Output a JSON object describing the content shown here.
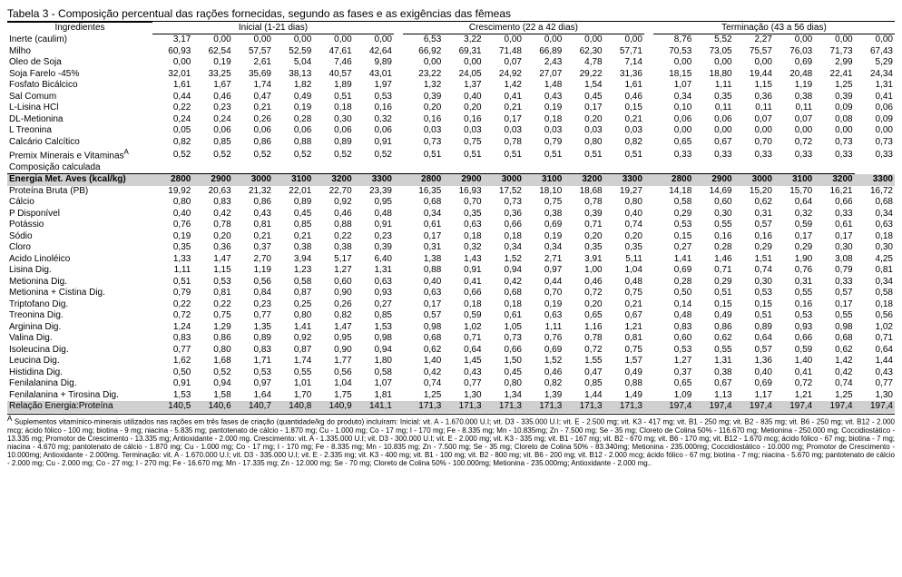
{
  "title": "Tabela 3 - Composição percentual das rações fornecidas, segundo as fases e as exigências das fêmeas",
  "header": {
    "ingredientes": "Ingredientes",
    "phases": [
      "Inicial (1-21 dias)",
      "Crescimento (22 a 42 dias)",
      "Terminação (43 a 56 dias)"
    ]
  },
  "ingredients": [
    {
      "label": "Inerte (caulim)",
      "v": [
        "3,17",
        "0,00",
        "0,00",
        "0,00",
        "0,00",
        "0,00",
        "6,53",
        "3,22",
        "0,00",
        "0,00",
        "0,00",
        "0,00",
        "8,76",
        "5,52",
        "2,27",
        "0,00",
        "0,00",
        "0,00"
      ]
    },
    {
      "label": "Milho",
      "v": [
        "60,93",
        "62,54",
        "57,57",
        "52,59",
        "47,61",
        "42,64",
        "66,92",
        "69,31",
        "71,48",
        "66,89",
        "62,30",
        "57,71",
        "70,53",
        "73,05",
        "75,57",
        "76,03",
        "71,73",
        "67,43"
      ]
    },
    {
      "label": "Óleo de Soja",
      "v": [
        "0,00",
        "0,19",
        "2,61",
        "5,04",
        "7,46",
        "9,89",
        "0,00",
        "0,00",
        "0,07",
        "2,43",
        "4,78",
        "7,14",
        "0,00",
        "0,00",
        "0,00",
        "0,69",
        "2,99",
        "5,29"
      ]
    },
    {
      "label": "Soja Farelo -45%",
      "v": [
        "32,01",
        "33,25",
        "35,69",
        "38,13",
        "40,57",
        "43,01",
        "23,22",
        "24,05",
        "24,92",
        "27,07",
        "29,22",
        "31,36",
        "18,15",
        "18,80",
        "19,44",
        "20,48",
        "22,41",
        "24,34"
      ]
    },
    {
      "label": "Fosfato Bicálcico",
      "v": [
        "1,61",
        "1,67",
        "1,74",
        "1,82",
        "1,89",
        "1,97",
        "1,32",
        "1,37",
        "1,42",
        "1,48",
        "1,54",
        "1,61",
        "1,07",
        "1,11",
        "1,15",
        "1,19",
        "1,25",
        "1,31"
      ]
    },
    {
      "label": "Sal Comum",
      "v": [
        "0,44",
        "0,46",
        "0,47",
        "0,49",
        "0,51",
        "0,53",
        "0,39",
        "0,40",
        "0,41",
        "0,43",
        "0,45",
        "0,46",
        "0,34",
        "0,35",
        "0,36",
        "0,38",
        "0,39",
        "0,41"
      ]
    },
    {
      "label": "L-Lisina HCl",
      "v": [
        "0,22",
        "0,23",
        "0,21",
        "0,19",
        "0,18",
        "0,16",
        "0,20",
        "0,20",
        "0,21",
        "0,19",
        "0,17",
        "0,15",
        "0,10",
        "0,11",
        "0,11",
        "0,11",
        "0,09",
        "0,06"
      ]
    },
    {
      "label": "DL-Metionina",
      "v": [
        "0,24",
        "0,24",
        "0,26",
        "0,28",
        "0,30",
        "0,32",
        "0,16",
        "0,16",
        "0,17",
        "0,18",
        "0,20",
        "0,21",
        "0,06",
        "0,06",
        "0,07",
        "0,07",
        "0,08",
        "0,09"
      ]
    },
    {
      "label": "L Treonina",
      "v": [
        "0,05",
        "0,06",
        "0,06",
        "0,06",
        "0,06",
        "0,06",
        "0,03",
        "0,03",
        "0,03",
        "0,03",
        "0,03",
        "0,03",
        "0,00",
        "0,00",
        "0,00",
        "0,00",
        "0,00",
        "0,00"
      ]
    },
    {
      "label": "Calcário Calcítico",
      "v": [
        "0,82",
        "0,85",
        "0,86",
        "0,88",
        "0,89",
        "0,91",
        "0,73",
        "0,75",
        "0,78",
        "0,79",
        "0,80",
        "0,82",
        "0,65",
        "0,67",
        "0,70",
        "0,72",
        "0,73",
        "0,73"
      ]
    },
    {
      "label": "Premix Minerais e Vitaminas",
      "sup": "A",
      "v": [
        "0,52",
        "0,52",
        "0,52",
        "0,52",
        "0,52",
        "0,52",
        "0,51",
        "0,51",
        "0,51",
        "0,51",
        "0,51",
        "0,51",
        "0,33",
        "0,33",
        "0,33",
        "0,33",
        "0,33",
        "0,33"
      ]
    }
  ],
  "composicao_label": "Composição calculada",
  "energy": {
    "label": "Energia Met. Aves (kcal/kg)",
    "v": [
      "2800",
      "2900",
      "3000",
      "3100",
      "3200",
      "3300",
      "2800",
      "2900",
      "3000",
      "3100",
      "3200",
      "3300",
      "2800",
      "2900",
      "3000",
      "3100",
      "3200",
      "3300"
    ]
  },
  "calculated": [
    {
      "label": "Proteína Bruta (PB)",
      "v": [
        "19,92",
        "20,63",
        "21,32",
        "22,01",
        "22,70",
        "23,39",
        "16,35",
        "16,93",
        "17,52",
        "18,10",
        "18,68",
        "19,27",
        "14,18",
        "14,69",
        "15,20",
        "15,70",
        "16,21",
        "16,72"
      ]
    },
    {
      "label": "Cálcio",
      "v": [
        "0,80",
        "0,83",
        "0,86",
        "0,89",
        "0,92",
        "0,95",
        "0,68",
        "0,70",
        "0,73",
        "0,75",
        "0,78",
        "0,80",
        "0,58",
        "0,60",
        "0,62",
        "0,64",
        "0,66",
        "0,68"
      ]
    },
    {
      "label": "P Disponível",
      "v": [
        "0,40",
        "0,42",
        "0,43",
        "0,45",
        "0,46",
        "0,48",
        "0,34",
        "0,35",
        "0,36",
        "0,38",
        "0,39",
        "0,40",
        "0,29",
        "0,30",
        "0,31",
        "0,32",
        "0,33",
        "0,34"
      ]
    },
    {
      "label": "Potássio",
      "v": [
        "0,76",
        "0,78",
        "0,81",
        "0,85",
        "0,88",
        "0,91",
        "0,61",
        "0,63",
        "0,66",
        "0,69",
        "0,71",
        "0,74",
        "0,53",
        "0,55",
        "0,57",
        "0,59",
        "0,61",
        "0,63"
      ]
    },
    {
      "label": "Sódio",
      "v": [
        "0,19",
        "0,20",
        "0,21",
        "0,21",
        "0,22",
        "0,23",
        "0,17",
        "0,18",
        "0,18",
        "0,19",
        "0,20",
        "0,20",
        "0,15",
        "0,16",
        "0,16",
        "0,17",
        "0,17",
        "0,18"
      ]
    },
    {
      "label": "Cloro",
      "v": [
        "0,35",
        "0,36",
        "0,37",
        "0,38",
        "0,38",
        "0,39",
        "0,31",
        "0,32",
        "0,34",
        "0,34",
        "0,35",
        "0,35",
        "0,27",
        "0,28",
        "0,29",
        "0,29",
        "0,30",
        "0,30"
      ]
    },
    {
      "label": "Ácido Linoléico",
      "v": [
        "1,33",
        "1,47",
        "2,70",
        "3,94",
        "5,17",
        "6,40",
        "1,38",
        "1,43",
        "1,52",
        "2,71",
        "3,91",
        "5,11",
        "1,41",
        "1,46",
        "1,51",
        "1,90",
        "3,08",
        "4,25"
      ]
    },
    {
      "label": "Lisina Dig.",
      "v": [
        "1,11",
        "1,15",
        "1,19",
        "1,23",
        "1,27",
        "1,31",
        "0,88",
        "0,91",
        "0,94",
        "0,97",
        "1,00",
        "1,04",
        "0,69",
        "0,71",
        "0,74",
        "0,76",
        "0,79",
        "0,81"
      ]
    },
    {
      "label": "Metionina Dig.",
      "v": [
        "0,51",
        "0,53",
        "0,56",
        "0,58",
        "0,60",
        "0,63",
        "0,40",
        "0,41",
        "0,42",
        "0,44",
        "0,46",
        "0,48",
        "0,28",
        "0,29",
        "0,30",
        "0,31",
        "0,33",
        "0,34"
      ]
    },
    {
      "label": "Metionina + Cistina Dig.",
      "v": [
        "0,79",
        "0,81",
        "0,84",
        "0,87",
        "0,90",
        "0,93",
        "0,63",
        "0,66",
        "0,68",
        "0,70",
        "0,72",
        "0,75",
        "0,50",
        "0,51",
        "0,53",
        "0,55",
        "0,57",
        "0,58"
      ]
    },
    {
      "label": "Triptofano Dig.",
      "v": [
        "0,22",
        "0,22",
        "0,23",
        "0,25",
        "0,26",
        "0,27",
        "0,17",
        "0,18",
        "0,18",
        "0,19",
        "0,20",
        "0,21",
        "0,14",
        "0,15",
        "0,15",
        "0,16",
        "0,17",
        "0,18"
      ]
    },
    {
      "label": "Treonina Dig.",
      "v": [
        "0,72",
        "0,75",
        "0,77",
        "0,80",
        "0,82",
        "0,85",
        "0,57",
        "0,59",
        "0,61",
        "0,63",
        "0,65",
        "0,67",
        "0,48",
        "0,49",
        "0,51",
        "0,53",
        "0,55",
        "0,56"
      ]
    },
    {
      "label": "Arginina Dig.",
      "v": [
        "1,24",
        "1,29",
        "1,35",
        "1,41",
        "1,47",
        "1,53",
        "0,98",
        "1,02",
        "1,05",
        "1,11",
        "1,16",
        "1,21",
        "0,83",
        "0,86",
        "0,89",
        "0,93",
        "0,98",
        "1,02"
      ]
    },
    {
      "label": "Valina Dig.",
      "v": [
        "0,83",
        "0,86",
        "0,89",
        "0,92",
        "0,95",
        "0,98",
        "0,68",
        "0,71",
        "0,73",
        "0,76",
        "0,78",
        "0,81",
        "0,60",
        "0,62",
        "0,64",
        "0,66",
        "0,68",
        "0,71"
      ]
    },
    {
      "label": "Isoleucina Dig.",
      "v": [
        "0,77",
        "0,80",
        "0,83",
        "0,87",
        "0,90",
        "0,94",
        "0,62",
        "0,64",
        "0,66",
        "0,69",
        "0,72",
        "0,75",
        "0,53",
        "0,55",
        "0,57",
        "0,59",
        "0,62",
        "0,64"
      ]
    },
    {
      "label": "Leucina Dig.",
      "v": [
        "1,62",
        "1,68",
        "1,71",
        "1,74",
        "1,77",
        "1,80",
        "1,40",
        "1,45",
        "1,50",
        "1,52",
        "1,55",
        "1,57",
        "1,27",
        "1,31",
        "1,36",
        "1,40",
        "1,42",
        "1,44"
      ]
    },
    {
      "label": "Histidina Dig.",
      "v": [
        "0,50",
        "0,52",
        "0,53",
        "0,55",
        "0,56",
        "0,58",
        "0,42",
        "0,43",
        "0,45",
        "0,46",
        "0,47",
        "0,49",
        "0,37",
        "0,38",
        "0,40",
        "0,41",
        "0,42",
        "0,43"
      ]
    },
    {
      "label": "Fenilalanina Dig.",
      "v": [
        "0,91",
        "0,94",
        "0,97",
        "1,01",
        "1,04",
        "1,07",
        "0,74",
        "0,77",
        "0,80",
        "0,82",
        "0,85",
        "0,88",
        "0,65",
        "0,67",
        "0,69",
        "0,72",
        "0,74",
        "0,77"
      ]
    },
    {
      "label": "Fenilalanina + Tirosina Dig.",
      "v": [
        "1,53",
        "1,58",
        "1,64",
        "1,70",
        "1,75",
        "1,81",
        "1,25",
        "1,30",
        "1,34",
        "1,39",
        "1,44",
        "1,49",
        "1,09",
        "1,13",
        "1,17",
        "1,21",
        "1,25",
        "1,30"
      ]
    }
  ],
  "ratio": {
    "label": "Relação Energia:Proteína",
    "v": [
      "140,5",
      "140,6",
      "140,7",
      "140,8",
      "140,9",
      "141,1",
      "171,3",
      "171,3",
      "171,3",
      "171,3",
      "171,3",
      "171,3",
      "197,4",
      "197,4",
      "197,4",
      "197,4",
      "197,4",
      "197,4"
    ]
  },
  "footnote_sup": "A",
  "footnote": " Suplementos vitamínico-minerais utilizados nas rações em três fases de criação (quantidade/kg do produto) incluíram: Inicial: vit. A - 1.670.000 U.I; vit. D3 - 335.000 U.I; vit. E - 2.500 mg; vit. K3 - 417 mg; vit. B1 - 250 mg; vit. B2 - 835  mg; vit. B6 - 250 mg; vit. B12 - 2.000 mcg; ácido fólico - 100 mg; biotina - 9 mg; niacina - 5.835 mg; pantotenato de cálcio - 1.870 mg; Cu - 1.000 mg; Co - 17 mg; I - 170 mg; Fe - 8.335 mg; Mn - 10.835mg; Zn - 7.500 mg; Se - 35  mg; Cloreto de Colina 50% - 116.670 mg; Metionina - 250.000 mg; Coccidiostático - 13.335 mg; Promotor de Crescimento - 13.335 mg; Antioxidante - 2.000 mg. Crescimento: vit. A - 1.335.000 U.I; vit. D3 - 300.000 U.I; vit. E - 2.000 mg; vit. K3 - 335 mg; vit. B1 - 167 mg; vit. B2 - 670 mg; vit. B6 - 170 mg; vit. B12 - 1.670 mcg; ácido fólico - 67 mg; biotina - 7 mg; niacina - 4.670 mg; pantotenato de cálcio - 1.870 mg; Cu - 1.000 mg; Co - 17 mg; I - 170 mg; Fe - 8.335 mg; Mn - 10.835 mg; Zn - 7.500 mg; Se - 35 mg; Cloreto de Colina 50% - 83.340mg; Metionina - 235.000mg; Coccidiostático - 10.000 mg; Promotor de Crescimento - 10.000mg; Antioxidante - 2.000mg. Terminação: vit. A - 1.670.000 U.I; vit. D3 - 335.000 U.I; vit. E - 2.335 mg; vit. K3 - 400 mg; vit. B1 - 100 mg; vit. B2 - 800 mg; vit. B6 - 200 mg; vit. B12 -  2.000 mcg; ácido fólico -  67 mg; biotina - 7 mg; niacina - 5.670 mg; pantotenato de cálcio -  2.000 mg; Cu - 2.000 mg; Co - 27 mg; I - 270 mg; Fe - 16.670 mg; Mn - 17.335 mg; Zn - 12.000 mg; Se -  70 mg; Cloreto de Colina 50% - 100.000mg; Metionina - 235.000mg; Antioxidante - 2.000 mg.."
}
